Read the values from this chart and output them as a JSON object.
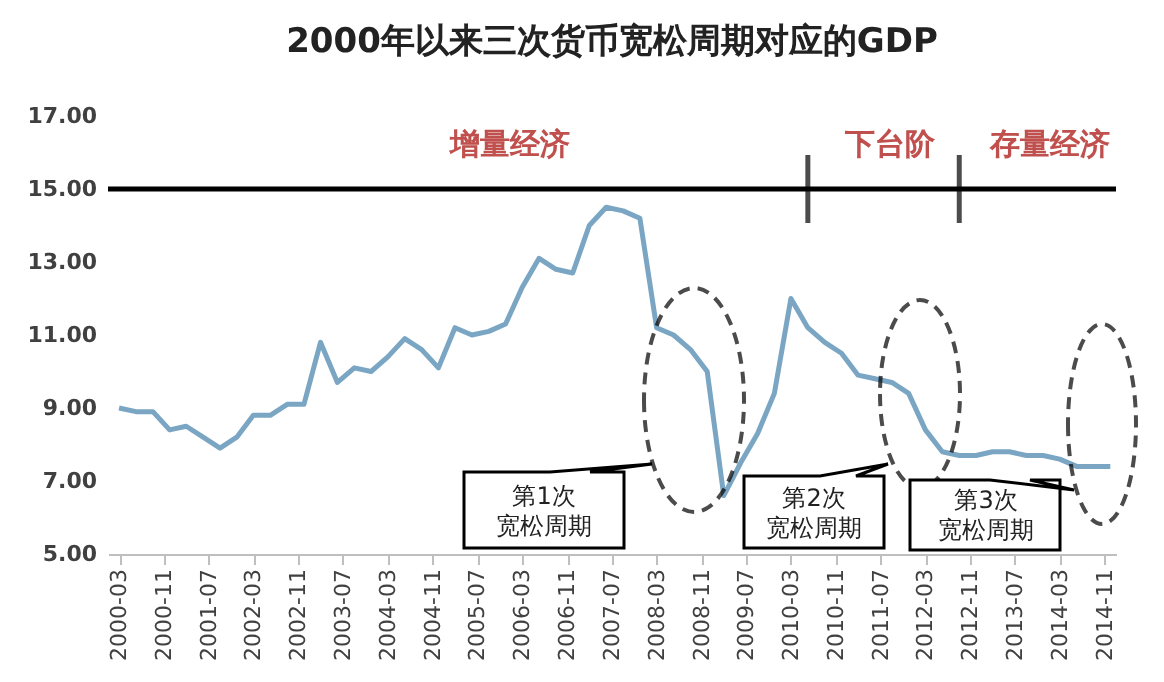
{
  "chart_data": {
    "type": "line",
    "title": "2000年以来三次货币宽松周期对应的GDP",
    "x": [
      "2000-03",
      "2000-06",
      "2000-09",
      "2000-12",
      "2001-03",
      "2001-06",
      "2001-09",
      "2001-12",
      "2002-03",
      "2002-06",
      "2002-09",
      "2002-12",
      "2003-03",
      "2003-06",
      "2003-09",
      "2003-12",
      "2004-03",
      "2004-06",
      "2004-09",
      "2004-12",
      "2005-03",
      "2005-06",
      "2005-09",
      "2005-12",
      "2006-03",
      "2006-06",
      "2006-09",
      "2006-12",
      "2007-03",
      "2007-06",
      "2007-09",
      "2007-12",
      "2008-03",
      "2008-06",
      "2008-09",
      "2008-12",
      "2009-03",
      "2009-06",
      "2009-09",
      "2009-12",
      "2010-03",
      "2010-06",
      "2010-09",
      "2010-12",
      "2011-03",
      "2011-06",
      "2011-09",
      "2011-12",
      "2012-03",
      "2012-06",
      "2012-09",
      "2012-12",
      "2013-03",
      "2013-06",
      "2013-09",
      "2013-12",
      "2014-03",
      "2014-06",
      "2014-09",
      "2014-12"
    ],
    "series": [
      {
        "color": "#7aa6c4",
        "values": [
          9.0,
          8.9,
          8.9,
          8.4,
          8.5,
          8.2,
          7.9,
          8.2,
          8.8,
          8.8,
          9.1,
          9.1,
          10.8,
          9.7,
          10.1,
          10.0,
          10.4,
          10.9,
          10.6,
          10.1,
          11.2,
          11.0,
          11.1,
          11.3,
          12.3,
          13.1,
          12.8,
          12.7,
          14.0,
          14.5,
          14.4,
          14.2,
          11.2,
          11.0,
          10.6,
          10.0,
          6.6,
          7.5,
          8.3,
          9.4,
          12.0,
          11.2,
          10.8,
          10.5,
          9.9,
          9.8,
          9.7,
          9.4,
          8.4,
          7.8,
          7.7,
          7.7,
          7.8,
          7.8,
          7.7,
          7.7,
          7.6,
          7.4,
          7.4,
          7.4
        ]
      }
    ],
    "xlim": [
      "2000-01",
      "2015-01"
    ],
    "xticks": [
      "2000-03",
      "2000-11",
      "2001-07",
      "2002-03",
      "2002-11",
      "2003-07",
      "2004-03",
      "2004-11",
      "2005-07",
      "2006-03",
      "2006-11",
      "2007-07",
      "2008-03",
      "2008-11",
      "2009-07",
      "2010-03",
      "2010-11",
      "2011-07",
      "2012-03",
      "2012-11",
      "2013-07",
      "2014-03",
      "2014-11"
    ],
    "ylim": [
      5,
      17
    ],
    "yticks": [
      {
        "value": 5,
        "label": "5.00"
      },
      {
        "value": 7,
        "label": "7.00"
      },
      {
        "value": 9,
        "label": "9.00"
      },
      {
        "value": 11,
        "label": "11.00"
      },
      {
        "value": 13,
        "label": "13.00"
      },
      {
        "value": 15,
        "label": "15.00"
      },
      {
        "value": 17,
        "label": "17.00"
      }
    ],
    "ref_lines": [
      {
        "axis": "y",
        "value": 15,
        "color": "#000000"
      },
      {
        "axis": "x",
        "value": "2010-06",
        "color": "#000000"
      },
      {
        "axis": "x",
        "value": "2012-09",
        "color": "#000000"
      }
    ],
    "annotations": [
      "增量经济",
      "下台阶",
      "存量经济",
      "第1次宽松周期",
      "第2次宽松周期",
      "第3次宽松周期"
    ],
    "grid": false,
    "legend": false,
    "marker": "none",
    "line_style": "solid"
  }
}
